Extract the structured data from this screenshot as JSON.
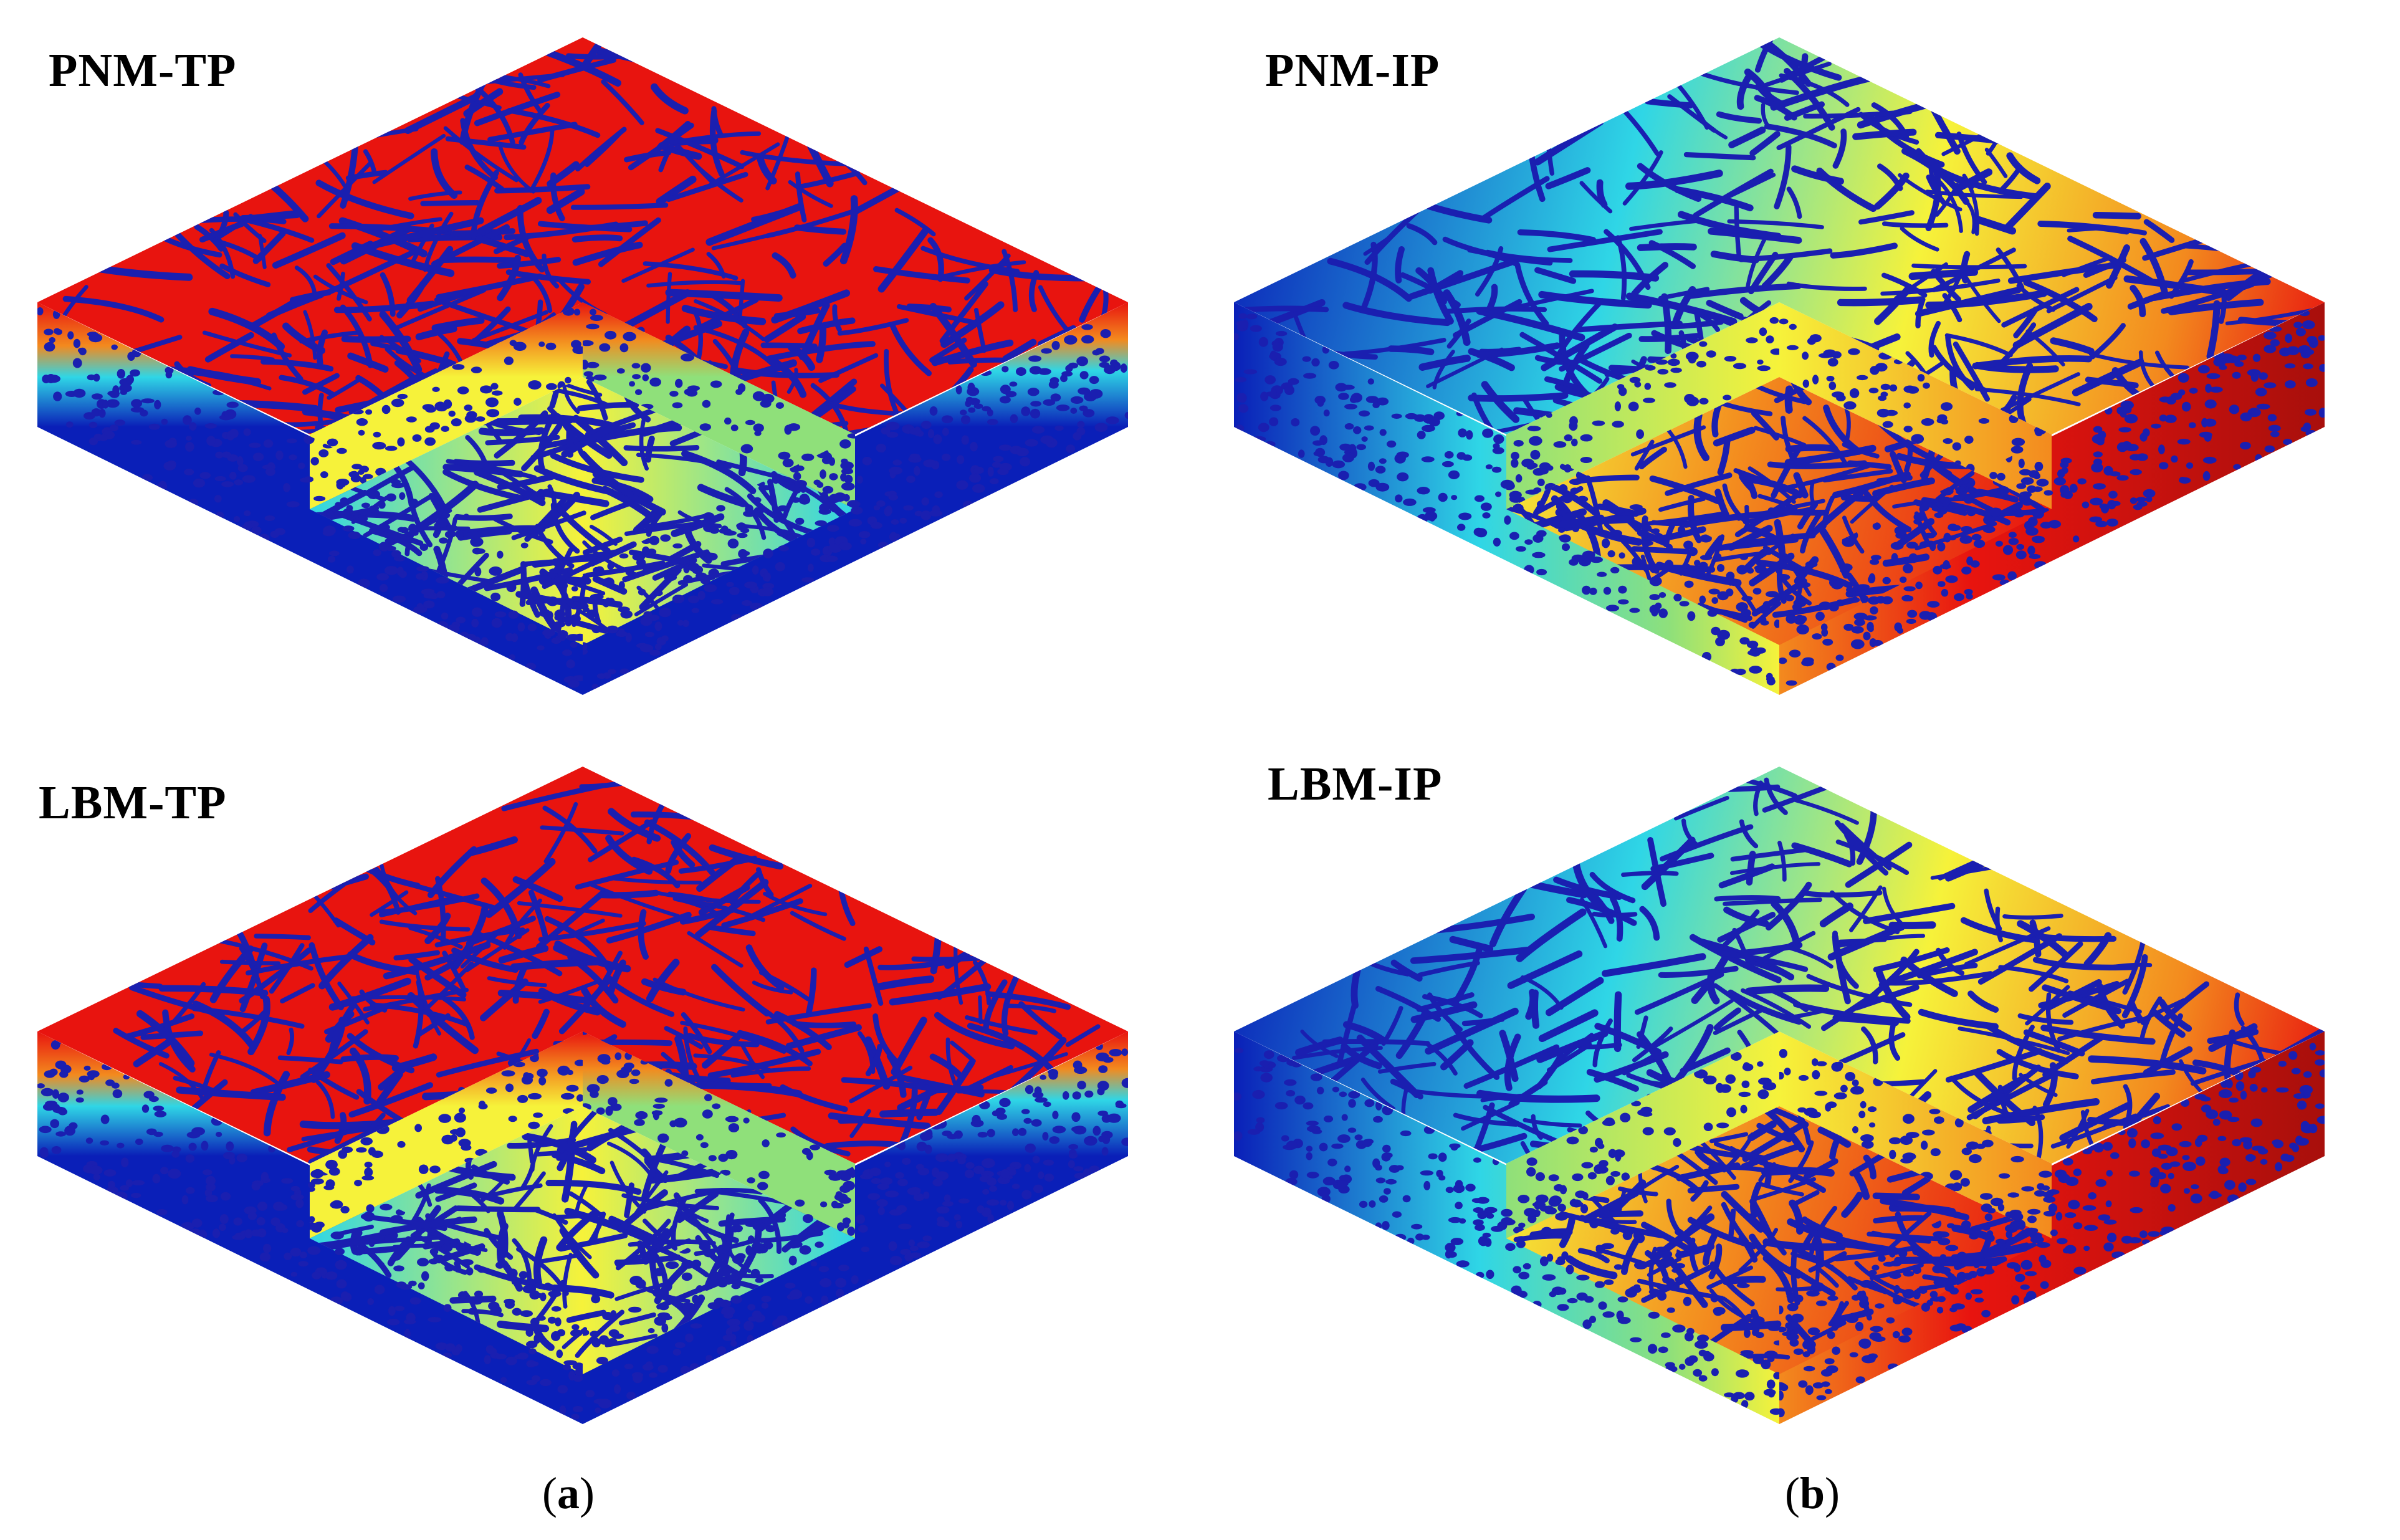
{
  "figure": {
    "panels": [
      {
        "id": "pnm-tp",
        "label": "PNM-TP",
        "gradient": "tp",
        "seed": 11
      },
      {
        "id": "pnm-ip",
        "label": "PNM-IP",
        "gradient": "ip",
        "seed": 23
      },
      {
        "id": "lbm-tp",
        "label": "LBM-TP",
        "gradient": "tp",
        "seed": 37
      },
      {
        "id": "lbm-ip",
        "label": "LBM-IP",
        "gradient": "ip",
        "seed": 53
      }
    ],
    "captions": [
      {
        "id": "a",
        "open": "(",
        "letter": "a",
        "close": ")"
      },
      {
        "id": "b",
        "open": "(",
        "letter": "b",
        "close": ")"
      }
    ],
    "colors": {
      "blue": "#0a1fb8",
      "cyan": "#2fd6e6",
      "green": "#8fe07a",
      "yellow": "#f6f23a",
      "orange": "#f38a1e",
      "red": "#e8140f",
      "dark_red": "#a80f0c",
      "fiber": "#1a1fb0"
    }
  }
}
